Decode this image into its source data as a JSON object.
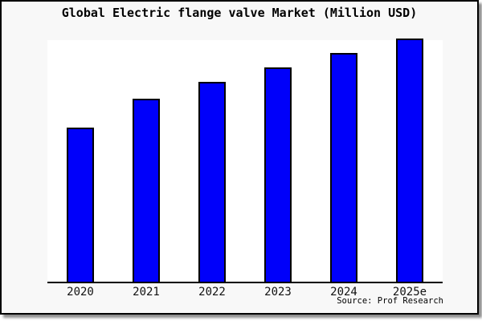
{
  "window": {
    "background": "#f8f8f8",
    "border_color": "#000000",
    "shadow_color": "#8c8c8c",
    "plot_background": "#ffffff"
  },
  "title": "Global Electric flange valve Market (Million USD)",
  "source": "Source: Prof Research",
  "chart_data": {
    "type": "bar",
    "title": "Global Electric flange valve Market (Million USD)",
    "categories": [
      "2020",
      "2021",
      "2022",
      "2023",
      "2024",
      "2025e"
    ],
    "values": [
      63,
      75,
      82,
      88,
      94,
      100
    ],
    "values_note": "relative index (no y-axis tick labels shown); max bar = 100",
    "xlabel": "",
    "ylabel": "",
    "ylim": [
      0,
      100
    ],
    "grid": false,
    "legend": "none",
    "y_axis_labels_visible": false,
    "bar_color": "#0000fa",
    "bar_border_color": "#000000",
    "axis_color": "#000000"
  }
}
